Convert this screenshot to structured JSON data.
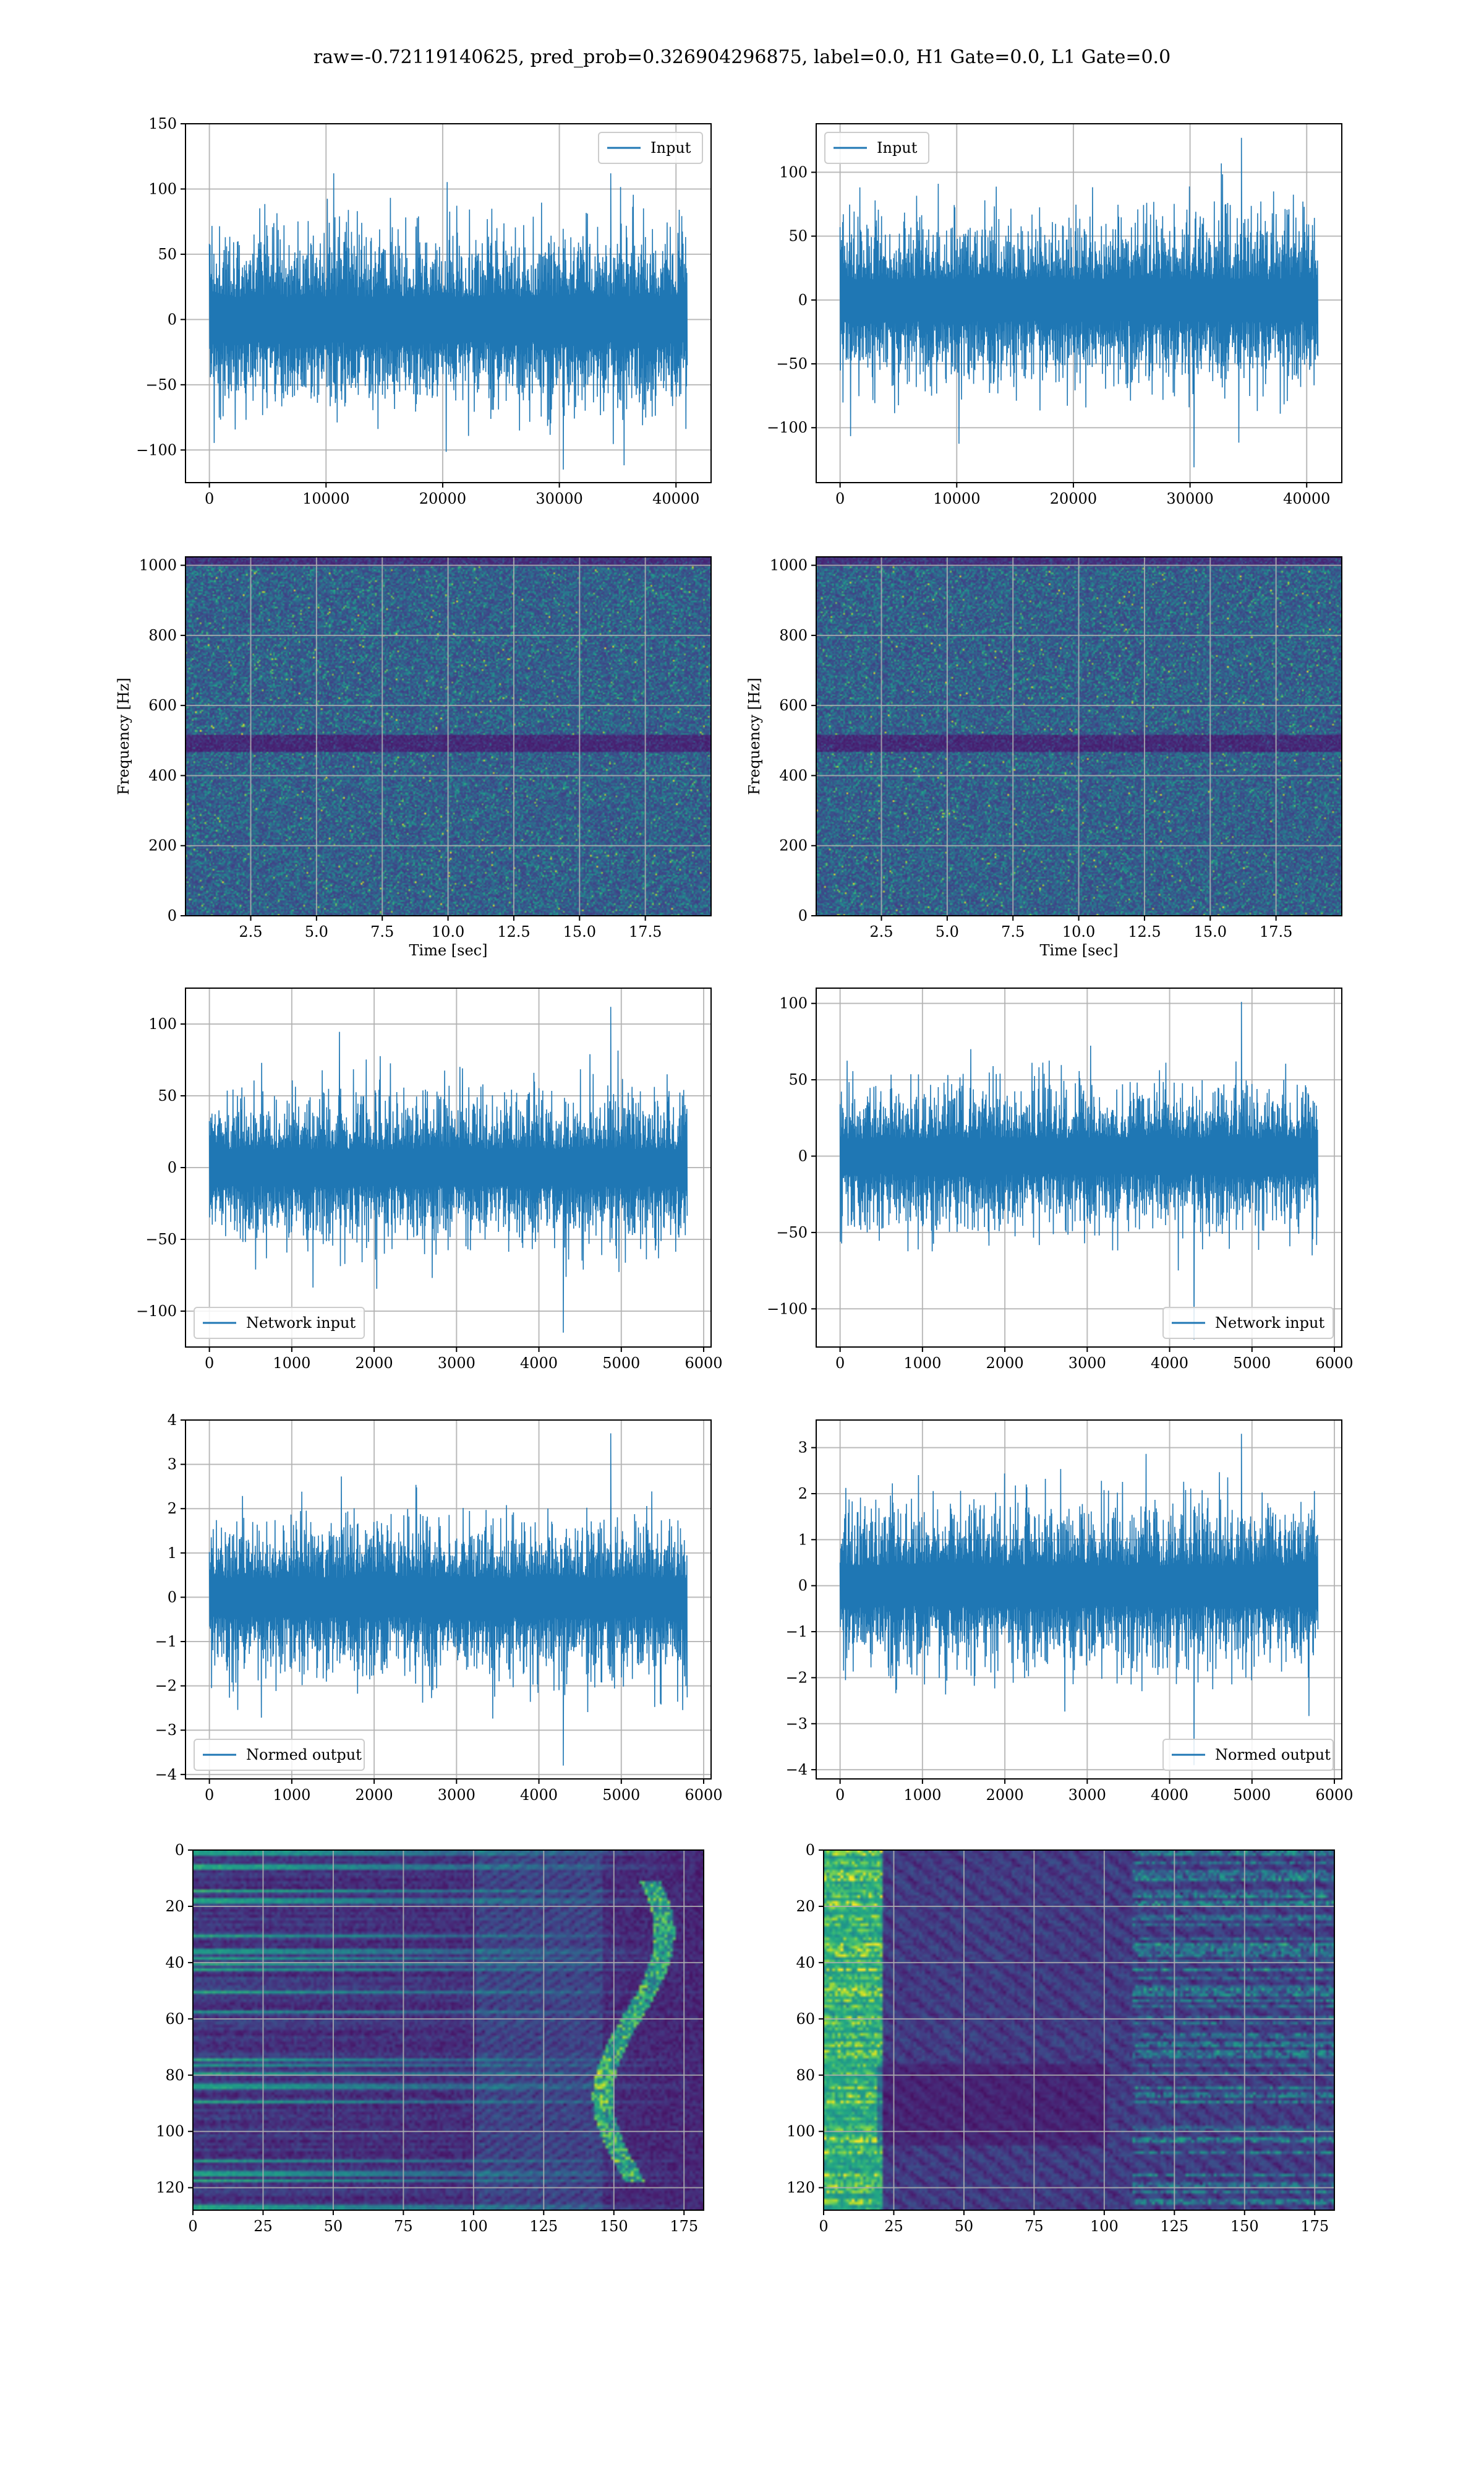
{
  "title": "raw=-0.72119140625, pred_prob=0.326904296875, label=0.0, H1 Gate=0.0, L1 Gate=0.0",
  "colors": {
    "line": "#1f77b4",
    "viridis_low": "#440154",
    "viridis_mid": "#21918c",
    "viridis_high": "#fde725",
    "grid": "#b0b0b0"
  },
  "chart_data": [
    {
      "type": "line",
      "panel": "row1-left",
      "legend": "Input",
      "legend_loc": "upper right",
      "xlim": [
        -2048,
        43008
      ],
      "ylim": [
        -125,
        150
      ],
      "xticks": [
        0,
        10000,
        20000,
        30000,
        40000
      ],
      "xtick_labels": [
        "0",
        "10000",
        "20000",
        "30000",
        "40000"
      ],
      "yticks": [
        -100,
        -50,
        0,
        50,
        100,
        150
      ],
      "ytick_labels": [
        "−100",
        "−50",
        "0",
        "50",
        "100",
        "150"
      ],
      "envelope": {
        "x_range": [
          0,
          40960
        ],
        "typical_band": [
          -75,
          75
        ],
        "max": 112,
        "min": -115
      }
    },
    {
      "type": "line",
      "panel": "row1-right",
      "legend": "Input",
      "legend_loc": "upper left",
      "xlim": [
        -2048,
        43008
      ],
      "ylim": [
        -143,
        138
      ],
      "xticks": [
        0,
        10000,
        20000,
        30000,
        40000
      ],
      "xtick_labels": [
        "0",
        "10000",
        "20000",
        "30000",
        "40000"
      ],
      "yticks": [
        -100,
        -50,
        0,
        50,
        100
      ],
      "ytick_labels": [
        "−100",
        "−50",
        "0",
        "50",
        "100"
      ],
      "envelope": {
        "x_range": [
          0,
          40960
        ],
        "typical_band": [
          -70,
          70
        ],
        "max": 127,
        "min": -131
      }
    },
    {
      "type": "heatmap",
      "panel": "row2-left",
      "colormap": "viridis",
      "xlabel": "Time [sec]",
      "ylabel": "Frequency [Hz]",
      "xlim": [
        0.02,
        20.0
      ],
      "ylim": [
        0,
        1024
      ],
      "xticks": [
        2.5,
        5.0,
        7.5,
        10.0,
        12.5,
        15.0,
        17.5
      ],
      "xtick_labels": [
        "2.5",
        "5.0",
        "7.5",
        "10.0",
        "12.5",
        "15.0",
        "17.5"
      ],
      "yticks": [
        0,
        200,
        400,
        600,
        800,
        1000
      ],
      "ytick_labels": [
        "0",
        "200",
        "400",
        "600",
        "800",
        "1000"
      ],
      "dark_band_hz": [
        470,
        520
      ]
    },
    {
      "type": "heatmap",
      "panel": "row2-right",
      "colormap": "viridis",
      "xlabel": "Time [sec]",
      "ylabel": "Frequency [Hz]",
      "xlim": [
        0.02,
        20.0
      ],
      "ylim": [
        0,
        1024
      ],
      "xticks": [
        2.5,
        5.0,
        7.5,
        10.0,
        12.5,
        15.0,
        17.5
      ],
      "xtick_labels": [
        "2.5",
        "5.0",
        "7.5",
        "10.0",
        "12.5",
        "15.0",
        "17.5"
      ],
      "yticks": [
        0,
        200,
        400,
        600,
        800,
        1000
      ],
      "ytick_labels": [
        "0",
        "200",
        "400",
        "600",
        "800",
        "1000"
      ],
      "dark_band_hz": [
        470,
        520
      ]
    },
    {
      "type": "line",
      "panel": "row3-left",
      "legend": "Network input",
      "legend_loc": "lower left",
      "xlim": [
        -290,
        6090
      ],
      "ylim": [
        -125,
        125
      ],
      "xticks": [
        0,
        1000,
        2000,
        3000,
        4000,
        5000,
        6000
      ],
      "xtick_labels": [
        "0",
        "1000",
        "2000",
        "3000",
        "4000",
        "5000",
        "6000"
      ],
      "yticks": [
        -100,
        -50,
        0,
        50,
        100
      ],
      "ytick_labels": [
        "−100",
        "−50",
        "0",
        "50",
        "100"
      ],
      "envelope": {
        "x_range": [
          0,
          5800
        ],
        "typical_band": [
          -55,
          55
        ],
        "max": 112,
        "min": -115
      }
    },
    {
      "type": "line",
      "panel": "row3-right",
      "legend": "Network input",
      "legend_loc": "lower right",
      "xlim": [
        -290,
        6090
      ],
      "ylim": [
        -125,
        110
      ],
      "xticks": [
        0,
        1000,
        2000,
        3000,
        4000,
        5000,
        6000
      ],
      "xtick_labels": [
        "0",
        "1000",
        "2000",
        "3000",
        "4000",
        "5000",
        "6000"
      ],
      "yticks": [
        -100,
        -50,
        0,
        50,
        100
      ],
      "ytick_labels": [
        "−100",
        "−50",
        "0",
        "50",
        "100"
      ],
      "envelope": {
        "x_range": [
          0,
          5800
        ],
        "typical_band": [
          -50,
          50
        ],
        "max": 101,
        "min": -120
      }
    },
    {
      "type": "line",
      "panel": "row4-left",
      "legend": "Normed output",
      "legend_loc": "lower left",
      "xlim": [
        -290,
        6090
      ],
      "ylim": [
        -4.1,
        4.0
      ],
      "xticks": [
        0,
        1000,
        2000,
        3000,
        4000,
        5000,
        6000
      ],
      "xtick_labels": [
        "0",
        "1000",
        "2000",
        "3000",
        "4000",
        "5000",
        "6000"
      ],
      "yticks": [
        -4,
        -3,
        -2,
        -1,
        0,
        1,
        2,
        3,
        4
      ],
      "ytick_labels": [
        "−4",
        "−3",
        "−2",
        "−1",
        "0",
        "1",
        "2",
        "3",
        "4"
      ],
      "envelope": {
        "x_range": [
          0,
          5800
        ],
        "typical_band": [
          -1.9,
          1.9
        ],
        "max": 3.7,
        "min": -3.8
      }
    },
    {
      "type": "line",
      "panel": "row4-right",
      "legend": "Normed output",
      "legend_loc": "lower right",
      "xlim": [
        -290,
        6090
      ],
      "ylim": [
        -4.2,
        3.6
      ],
      "xticks": [
        0,
        1000,
        2000,
        3000,
        4000,
        5000,
        6000
      ],
      "xtick_labels": [
        "0",
        "1000",
        "2000",
        "3000",
        "4000",
        "5000",
        "6000"
      ],
      "yticks": [
        -4,
        -3,
        -2,
        -1,
        0,
        1,
        2,
        3
      ],
      "ytick_labels": [
        "−4",
        "−3",
        "−2",
        "−1",
        "0",
        "1",
        "2",
        "3"
      ],
      "envelope": {
        "x_range": [
          0,
          5800
        ],
        "typical_band": [
          -1.9,
          1.9
        ],
        "max": 3.3,
        "min": -3.9
      }
    },
    {
      "type": "heatmap",
      "panel": "row5-left",
      "colormap": "viridis",
      "xlim": [
        0,
        182
      ],
      "ylim": [
        128,
        0
      ],
      "xticks": [
        0,
        25,
        50,
        75,
        100,
        125,
        150,
        175
      ],
      "xtick_labels": [
        "0",
        "25",
        "50",
        "75",
        "100",
        "125",
        "150",
        "175"
      ],
      "yticks": [
        0,
        20,
        40,
        60,
        80,
        100,
        120
      ],
      "ytick_labels": [
        "0",
        "20",
        "40",
        "60",
        "80",
        "100",
        "120"
      ],
      "bright_features": "horizontal streaks on the left fading toward center; bright curved structure near x 150-175"
    },
    {
      "type": "heatmap",
      "panel": "row5-right",
      "colormap": "viridis",
      "xlim": [
        0,
        182
      ],
      "ylim": [
        128,
        0
      ],
      "xticks": [
        0,
        25,
        50,
        75,
        100,
        125,
        150,
        175
      ],
      "xtick_labels": [
        "0",
        "25",
        "50",
        "75",
        "100",
        "125",
        "150",
        "175"
      ],
      "yticks": [
        0,
        20,
        40,
        60,
        80,
        100,
        120
      ],
      "ytick_labels": [
        "0",
        "20",
        "40",
        "60",
        "80",
        "100",
        "120"
      ],
      "bright_features": "bright streaks near x 0-20; diagonal textures from center; bright streaks near x 125-180"
    }
  ]
}
